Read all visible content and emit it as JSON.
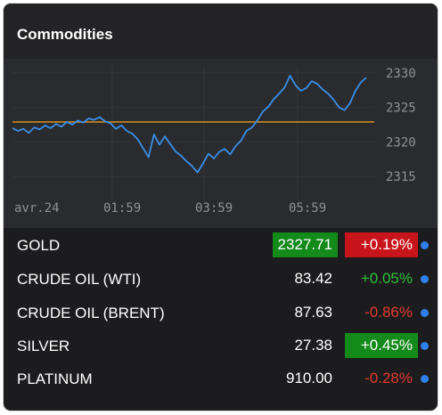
{
  "widget": {
    "title": "Commodities"
  },
  "chart_data": {
    "type": "line",
    "title": "",
    "x_tick_labels": [
      "avr.24",
      "01:59",
      "03:59",
      "05:59"
    ],
    "y_tick_labels": [
      "2330",
      "2325",
      "2320",
      "2315"
    ],
    "ylim": [
      2314,
      2331
    ],
    "reference_value": 2322.9,
    "series": [
      {
        "line_color": "#3a8ee6",
        "values": [
          2322.0,
          2321.6,
          2321.9,
          2321.3,
          2322.1,
          2321.8,
          2322.4,
          2322.0,
          2322.6,
          2322.2,
          2322.9,
          2322.5,
          2323.1,
          2322.8,
          2323.4,
          2323.2,
          2323.6,
          2323.0,
          2322.7,
          2321.9,
          2322.4,
          2321.6,
          2321.2,
          2320.4,
          2319.1,
          2317.8,
          2321.1,
          2319.6,
          2320.8,
          2319.7,
          2318.6,
          2318.0,
          2317.2,
          2316.5,
          2315.6,
          2316.9,
          2318.3,
          2317.6,
          2318.6,
          2319.0,
          2318.2,
          2319.4,
          2320.2,
          2321.6,
          2322.1,
          2323.1,
          2324.4,
          2325.1,
          2326.2,
          2327.0,
          2327.9,
          2329.6,
          2328.2,
          2327.4,
          2327.8,
          2328.8,
          2328.4,
          2327.6,
          2327.0,
          2326.1,
          2325.0,
          2324.6,
          2325.6,
          2327.4,
          2328.6,
          2329.3
        ]
      }
    ]
  },
  "commodities": [
    {
      "name": "GOLD",
      "price": "2327.71",
      "change": "+0.19%"
    },
    {
      "name": "CRUDE OIL (WTI)",
      "price": "83.42",
      "change": "+0.05%"
    },
    {
      "name": "CRUDE OIL (BRENT)",
      "price": "87.63",
      "change": "-0.86%"
    },
    {
      "name": "SILVER",
      "price": "27.38",
      "change": "+0.45%"
    },
    {
      "name": "PLATINUM",
      "price": "910.00",
      "change": "-0.28%"
    }
  ],
  "colors": {
    "price_highlight": "#138a1a",
    "negative_highlight": "#c8141b",
    "positive_text": "#2fc13a",
    "negative_text": "#e23a2e",
    "indicator_dot": "#2f80ed",
    "reference_line": "#c8891c"
  }
}
